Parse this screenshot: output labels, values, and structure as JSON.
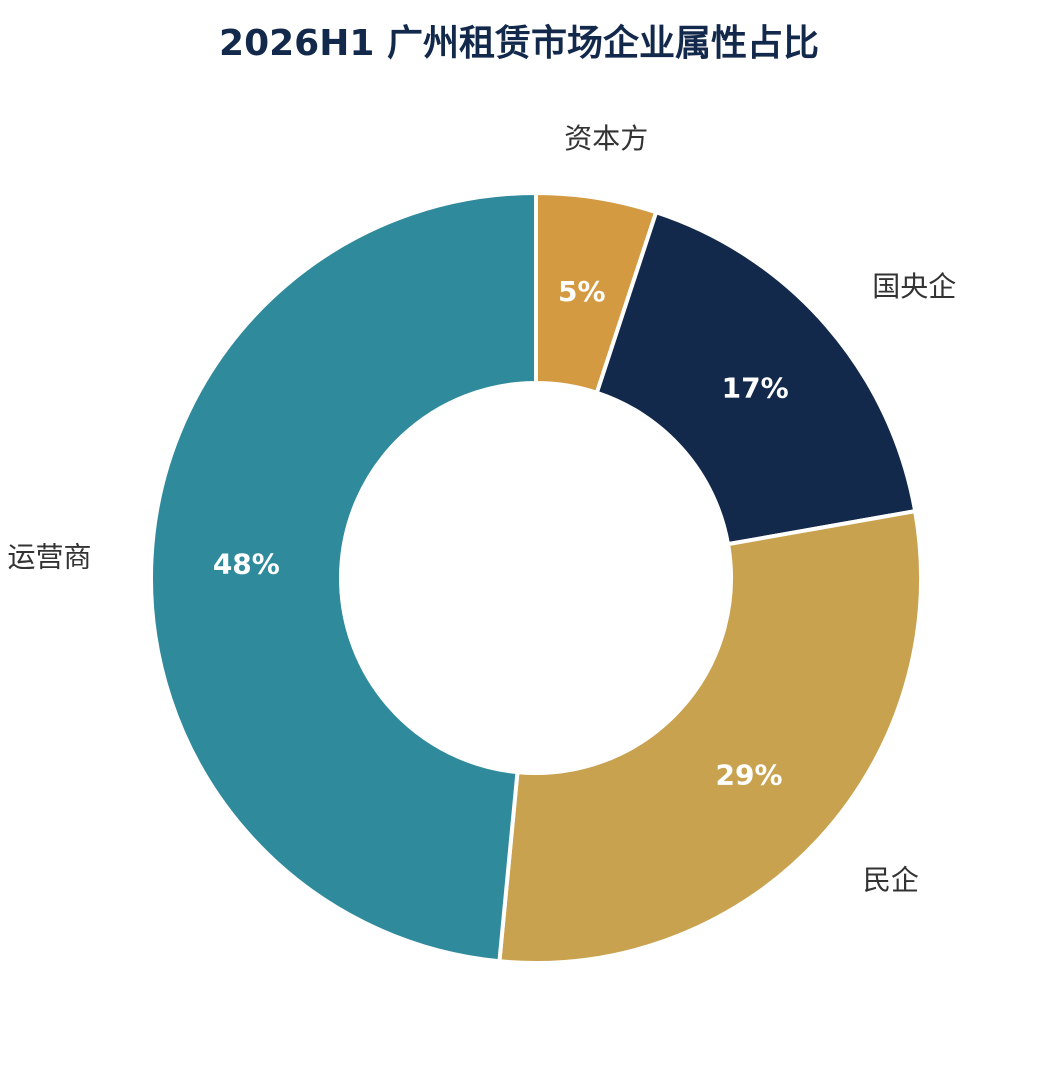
{
  "chart_data": {
    "type": "pie",
    "title": "2026H1 广州租赁市场企业属性占比",
    "style": "donut",
    "legend": "none",
    "categories": [
      "资本方",
      "国央企",
      "民企",
      "运营商"
    ],
    "values": [
      5,
      17,
      29,
      48
    ],
    "value_labels": [
      "5%",
      "17%",
      "29%",
      "48%"
    ],
    "colors": [
      "#d49a42",
      "#13294b",
      "#c8a24f",
      "#2f8a9c"
    ]
  }
}
